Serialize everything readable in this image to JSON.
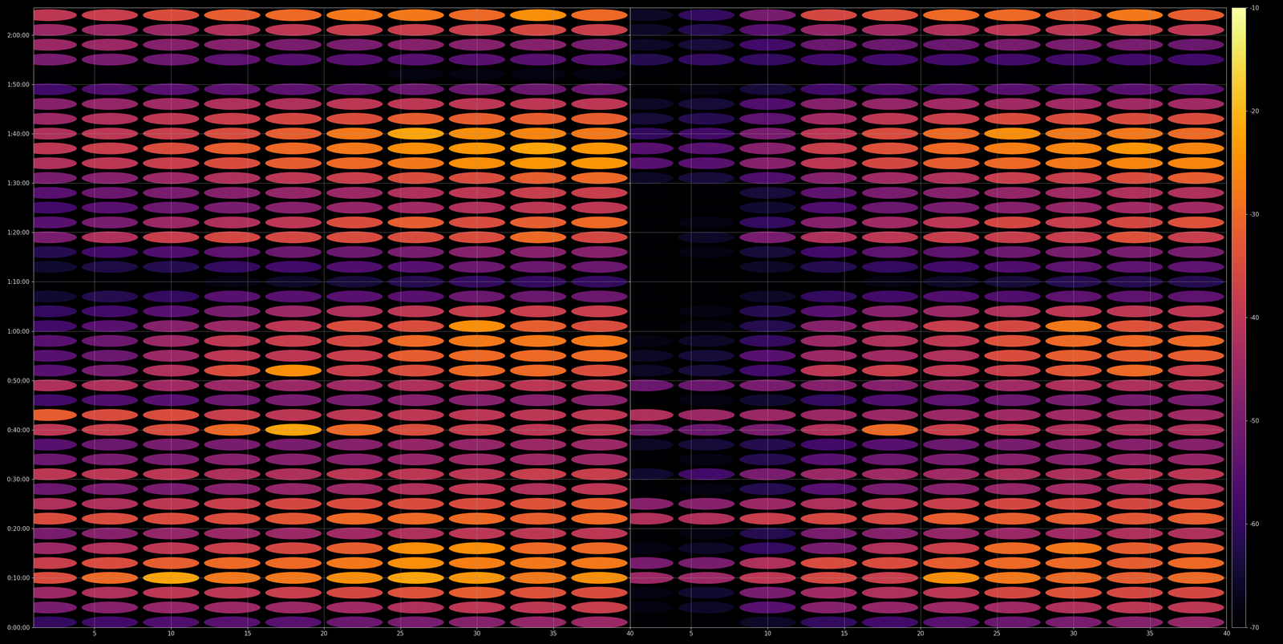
{
  "chart_data": [
    {
      "type": "heatmap",
      "color": "inferno",
      "grid": true,
      "x": [
        2,
        6,
        10,
        14,
        18,
        22,
        26,
        30,
        34,
        38
      ],
      "y": [
        60,
        240,
        420,
        600,
        780,
        960,
        1140,
        1320,
        1500,
        1680,
        1860,
        2040,
        2220,
        2400,
        2580,
        2760,
        2940,
        3120,
        3300,
        3480,
        3660,
        3840,
        4020,
        4200,
        4380,
        4560,
        4740,
        4920,
        5100,
        5280,
        5460,
        5640,
        5820,
        6000,
        6180,
        6360,
        6540,
        6720,
        6900,
        7080,
        7260,
        7440
      ],
      "cells": [
        [
          -60,
          -58,
          -56,
          -55,
          -55,
          -52,
          -50,
          -48,
          -46,
          -45
        ],
        [
          -50,
          -48,
          -46,
          -45,
          -45,
          -44,
          -42,
          -40,
          -40,
          -38
        ],
        [
          -45,
          -42,
          -40,
          -40,
          -38,
          -36,
          -34,
          -32,
          -34,
          -35
        ],
        [
          -35,
          -30,
          -22,
          -28,
          -28,
          -25,
          -22,
          -24,
          -28,
          -25
        ],
        [
          -38,
          -35,
          -32,
          -30,
          -30,
          -28,
          -25,
          -27,
          -28,
          -28
        ],
        [
          -45,
          -42,
          -40,
          -38,
          -36,
          -32,
          -25,
          -25,
          -30,
          -30
        ],
        [
          -50,
          -48,
          -46,
          -45,
          -45,
          -44,
          -42,
          -40,
          -40,
          -40
        ],
        [
          -35,
          -35,
          -35,
          -35,
          -33,
          -30,
          -30,
          -30,
          -32,
          -30
        ],
        [
          -42,
          -42,
          -40,
          -38,
          -36,
          -35,
          -35,
          -35,
          -34,
          -32
        ],
        [
          -52,
          -50,
          -50,
          -48,
          -46,
          -45,
          -42,
          -40,
          -42,
          -40
        ],
        [
          -40,
          -40,
          -40,
          -42,
          -42,
          -40,
          -40,
          -40,
          -38,
          -38
        ],
        [
          -52,
          -50,
          -50,
          -48,
          -48,
          -48,
          -46,
          -45,
          -45,
          -45
        ],
        [
          -55,
          -52,
          -50,
          -50,
          -50,
          -48,
          -46,
          -46,
          -45,
          -45
        ],
        [
          -40,
          -38,
          -35,
          -30,
          -22,
          -30,
          -35,
          -38,
          -40,
          -40
        ],
        [
          -32,
          -35,
          -35,
          -38,
          -40,
          -40,
          -40,
          -40,
          -40,
          -40
        ],
        [
          -58,
          -56,
          -55,
          -52,
          -50,
          -50,
          -48,
          -48,
          -48,
          -48
        ],
        [
          -42,
          -42,
          -44,
          -45,
          -45,
          -44,
          -42,
          -40,
          -40,
          -40
        ],
        [
          -55,
          -50,
          -42,
          -35,
          -25,
          -38,
          -35,
          -30,
          -30,
          -35
        ],
        [
          -55,
          -52,
          -45,
          -40,
          -40,
          -38,
          -32,
          -30,
          -30,
          -30
        ],
        [
          -55,
          -52,
          -45,
          -40,
          -38,
          -36,
          -30,
          -28,
          -28,
          -28
        ],
        [
          -58,
          -55,
          -48,
          -45,
          -40,
          -35,
          -35,
          -25,
          -32,
          -35
        ],
        [
          -60,
          -58,
          -55,
          -50,
          -45,
          -42,
          -40,
          -38,
          -38,
          -38
        ],
        [
          -65,
          -62,
          -60,
          -55,
          -55,
          -55,
          -55,
          -52,
          -52,
          -52
        ],
        [
          -70,
          -70,
          -70,
          -68,
          -66,
          -64,
          -62,
          -60,
          -60,
          -60
        ],
        [
          -65,
          -63,
          -62,
          -60,
          -58,
          -56,
          -55,
          -52,
          -52,
          -52
        ],
        [
          -62,
          -58,
          -56,
          -54,
          -52,
          -52,
          -50,
          -48,
          -48,
          -48
        ],
        [
          -50,
          -42,
          -38,
          -36,
          -36,
          -35,
          -35,
          -35,
          -30,
          -36
        ],
        [
          -55,
          -50,
          -45,
          -42,
          -40,
          -35,
          -32,
          -35,
          -32,
          -30
        ],
        [
          -58,
          -55,
          -52,
          -50,
          -48,
          -46,
          -44,
          -42,
          -40,
          -40
        ],
        [
          -55,
          -52,
          -50,
          -48,
          -46,
          -45,
          -42,
          -40,
          -38,
          -38
        ],
        [
          -50,
          -48,
          -45,
          -42,
          -40,
          -38,
          -35,
          -35,
          -32,
          -30
        ],
        [
          -42,
          -40,
          -38,
          -35,
          -32,
          -30,
          -28,
          -25,
          -24,
          -24
        ],
        [
          -40,
          -38,
          -35,
          -32,
          -30,
          -28,
          -25,
          -24,
          -22,
          -24
        ],
        [
          -42,
          -40,
          -38,
          -35,
          -32,
          -28,
          -22,
          -25,
          -26,
          -28
        ],
        [
          -45,
          -42,
          -40,
          -38,
          -36,
          -35,
          -32,
          -32,
          -32,
          -32
        ],
        [
          -48,
          -46,
          -44,
          -42,
          -42,
          -40,
          -40,
          -40,
          -40,
          -40
        ],
        [
          -58,
          -56,
          -55,
          -54,
          -54,
          -54,
          -52,
          -52,
          -52,
          -52
        ],
        [
          -70,
          -70,
          -70,
          -70,
          -70,
          -70,
          -68,
          -68,
          -68,
          -68
        ],
        [
          -50,
          -50,
          -52,
          -54,
          -55,
          -55,
          -55,
          -55,
          -55,
          -55
        ],
        [
          -45,
          -45,
          -48,
          -48,
          -50,
          -50,
          -48,
          -48,
          -48,
          -50
        ],
        [
          -45,
          -45,
          -45,
          -42,
          -40,
          -38,
          -38,
          -38,
          -36,
          -38
        ],
        [
          -40,
          -38,
          -35,
          -32,
          -30,
          -28,
          -28,
          -30,
          -25,
          -30
        ]
      ],
      "xlim": [
        1,
        40
      ],
      "ylim": [
        0,
        7530
      ],
      "xticks": [
        5,
        10,
        15,
        20,
        25,
        30,
        35,
        40
      ],
      "yticks": [
        {
          "value": 0,
          "label": "0:00:00"
        },
        {
          "value": 600,
          "label": "0:10:00"
        },
        {
          "value": 1200,
          "label": "0:20:00"
        },
        {
          "value": 1800,
          "label": "0:30:00"
        },
        {
          "value": 2400,
          "label": "0:40:00"
        },
        {
          "value": 3000,
          "label": "0:50:00"
        },
        {
          "value": 3600,
          "label": "1:00:00"
        },
        {
          "value": 4200,
          "label": "1:10:00"
        },
        {
          "value": 4800,
          "label": "1:20:00"
        },
        {
          "value": 5400,
          "label": "1:30:00"
        },
        {
          "value": 6000,
          "label": "1:40:00"
        },
        {
          "value": 6600,
          "label": "1:50:00"
        },
        {
          "value": 7200,
          "label": "2:00:00"
        }
      ]
    },
    {
      "type": "heatmap",
      "color": "inferno",
      "grid": true,
      "tick_labels": "x",
      "x": [
        2,
        6,
        10,
        14,
        18,
        22,
        26,
        30,
        34,
        38
      ],
      "y": [
        60,
        240,
        420,
        600,
        780,
        960,
        1140,
        1320,
        1500,
        1680,
        1860,
        2040,
        2220,
        2400,
        2580,
        2760,
        2940,
        3120,
        3300,
        3480,
        3660,
        3840,
        4020,
        4200,
        4380,
        4560,
        4740,
        4920,
        5100,
        5280,
        5460,
        5640,
        5820,
        6000,
        6180,
        6360,
        6540,
        6720,
        6900,
        7080,
        7260,
        7440
      ],
      "cells": [
        [
          -70,
          -70,
          -66,
          -60,
          -58,
          -55,
          -52,
          -50,
          -48,
          -46
        ],
        [
          -68,
          -66,
          -55,
          -48,
          -46,
          -45,
          -44,
          -42,
          -40,
          -40
        ],
        [
          -68,
          -65,
          -50,
          -44,
          -42,
          -40,
          -36,
          -34,
          -36,
          -36
        ],
        [
          -45,
          -45,
          -40,
          -36,
          -38,
          -25,
          -28,
          -30,
          -32,
          -30
        ],
        [
          -50,
          -50,
          -42,
          -35,
          -35,
          -32,
          -30,
          -30,
          -32,
          -30
        ],
        [
          -68,
          -66,
          -60,
          -50,
          -42,
          -38,
          -30,
          -28,
          -32,
          -32
        ],
        [
          -70,
          -68,
          -62,
          -50,
          -48,
          -46,
          -45,
          -44,
          -42,
          -42
        ],
        [
          -42,
          -42,
          -38,
          -36,
          -36,
          -32,
          -32,
          -32,
          -33,
          -32
        ],
        [
          -48,
          -48,
          -45,
          -42,
          -40,
          -38,
          -36,
          -36,
          -36,
          -34
        ],
        [
          -70,
          -68,
          -62,
          -55,
          -50,
          -48,
          -46,
          -44,
          -44,
          -42
        ],
        [
          -65,
          -58,
          -50,
          -45,
          -44,
          -44,
          -42,
          -42,
          -40,
          -40
        ],
        [
          -70,
          -68,
          -62,
          -55,
          -52,
          -50,
          -48,
          -48,
          -46,
          -46
        ],
        [
          -66,
          -64,
          -62,
          -58,
          -55,
          -52,
          -50,
          -48,
          -48,
          -48
        ],
        [
          -50,
          -52,
          -50,
          -42,
          -30,
          -38,
          -40,
          -42,
          -42,
          -42
        ],
        [
          -42,
          -45,
          -45,
          -45,
          -45,
          -45,
          -44,
          -44,
          -44,
          -44
        ],
        [
          -70,
          -68,
          -65,
          -60,
          -56,
          -54,
          -52,
          -50,
          -50,
          -50
        ],
        [
          -52,
          -52,
          -50,
          -48,
          -48,
          -46,
          -44,
          -42,
          -42,
          -42
        ],
        [
          -66,
          -64,
          -58,
          -40,
          -38,
          -40,
          -38,
          -33,
          -30,
          -38
        ],
        [
          -66,
          -64,
          -55,
          -45,
          -44,
          -42,
          -35,
          -32,
          -32,
          -32
        ],
        [
          -68,
          -66,
          -60,
          -45,
          -42,
          -40,
          -34,
          -30,
          -30,
          -30
        ],
        [
          -70,
          -68,
          -62,
          -48,
          -44,
          -38,
          -36,
          -28,
          -34,
          -36
        ],
        [
          -70,
          -68,
          -62,
          -55,
          -48,
          -45,
          -42,
          -40,
          -40,
          -40
        ],
        [
          -70,
          -70,
          -66,
          -60,
          -58,
          -56,
          -56,
          -54,
          -54,
          -54
        ],
        [
          -70,
          -70,
          -70,
          -70,
          -68,
          -66,
          -64,
          -62,
          -62,
          -62
        ],
        [
          -70,
          -70,
          -66,
          -62,
          -60,
          -58,
          -56,
          -54,
          -54,
          -54
        ],
        [
          -70,
          -68,
          -64,
          -58,
          -54,
          -54,
          -52,
          -50,
          -50,
          -50
        ],
        [
          -70,
          -66,
          -50,
          -42,
          -40,
          -38,
          -38,
          -38,
          -34,
          -38
        ],
        [
          -70,
          -68,
          -60,
          -48,
          -44,
          -40,
          -36,
          -38,
          -36,
          -34
        ],
        [
          -70,
          -70,
          -65,
          -56,
          -52,
          -50,
          -48,
          -46,
          -44,
          -44
        ],
        [
          -70,
          -70,
          -64,
          -54,
          -50,
          -48,
          -46,
          -44,
          -42,
          -42
        ],
        [
          -66,
          -64,
          -56,
          -48,
          -44,
          -42,
          -38,
          -38,
          -35,
          -32
        ],
        [
          -55,
          -55,
          -48,
          -40,
          -36,
          -32,
          -30,
          -28,
          -26,
          -26
        ],
        [
          -55,
          -55,
          -48,
          -38,
          -34,
          -30,
          -27,
          -26,
          -24,
          -26
        ],
        [
          -60,
          -58,
          -50,
          -40,
          -35,
          -30,
          -25,
          -28,
          -28,
          -30
        ],
        [
          -64,
          -62,
          -54,
          -44,
          -40,
          -38,
          -35,
          -35,
          -35,
          -35
        ],
        [
          -66,
          -64,
          -56,
          -48,
          -46,
          -44,
          -44,
          -44,
          -44,
          -44
        ],
        [
          -70,
          -68,
          -64,
          -58,
          -56,
          -56,
          -55,
          -55,
          -55,
          -55
        ],
        [
          -70,
          -70,
          -70,
          -70,
          -70,
          -70,
          -70,
          -70,
          -70,
          -70
        ],
        [
          -62,
          -60,
          -60,
          -58,
          -58,
          -58,
          -58,
          -58,
          -58,
          -58
        ],
        [
          -66,
          -64,
          -58,
          -52,
          -52,
          -52,
          -50,
          -50,
          -50,
          -52
        ],
        [
          -66,
          -62,
          -55,
          -46,
          -44,
          -42,
          -40,
          -40,
          -38,
          -40
        ],
        [
          -66,
          -60,
          -50,
          -36,
          -34,
          -30,
          -30,
          -32,
          -28,
          -32
        ]
      ],
      "xlim": [
        1,
        40
      ],
      "ylim": [
        0,
        7530
      ],
      "xticks": [
        5,
        10,
        15,
        20,
        25,
        30,
        35,
        40
      ],
      "yticks": [
        {
          "value": 0,
          "label": "0:00:00"
        },
        {
          "value": 600,
          "label": "0:10:00"
        },
        {
          "value": 1200,
          "label": "0:20:00"
        },
        {
          "value": 1800,
          "label": "0:30:00"
        },
        {
          "value": 2400,
          "label": "0:40:00"
        },
        {
          "value": 3000,
          "label": "0:50:00"
        },
        {
          "value": 3600,
          "label": "1:00:00"
        },
        {
          "value": 4200,
          "label": "1:10:00"
        },
        {
          "value": 4800,
          "label": "1:20:00"
        },
        {
          "value": 5400,
          "label": "1:30:00"
        },
        {
          "value": 6000,
          "label": "1:40:00"
        },
        {
          "value": 6600,
          "label": "1:50:00"
        },
        {
          "value": 7200,
          "label": "2:00:00"
        }
      ],
      "colorbar": {
        "range": [
          -70,
          -10
        ],
        "ticks": [
          -70,
          -60,
          -50,
          -40,
          -30,
          -20,
          -10
        ]
      }
    }
  ]
}
